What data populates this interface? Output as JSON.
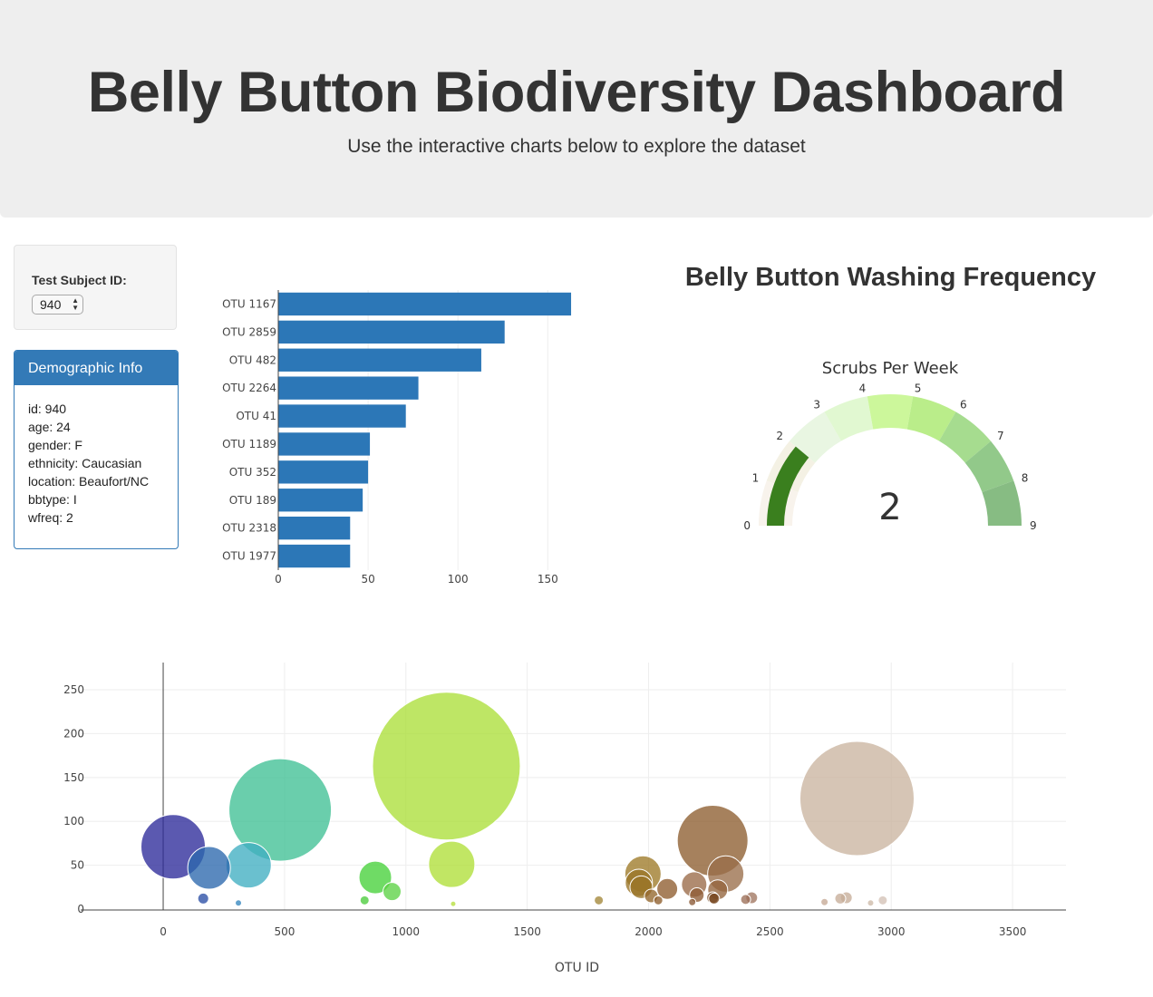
{
  "header": {
    "title": "Belly Button Biodiversity Dashboard",
    "subtitle": "Use the interactive charts below to explore the dataset"
  },
  "selector": {
    "label": "Test Subject ID:",
    "selected_value": "940"
  },
  "demographic": {
    "title": "Demographic Info",
    "lines": [
      "id: 940",
      "age: 24",
      "gender: F",
      "ethnicity: Caucasian",
      "location: Beaufort/NC",
      "bbtype: I",
      "wfreq: 2"
    ]
  },
  "colors": {
    "bar": "#2c77b7",
    "header_bg": "#eeeeee",
    "panel_accent": "#337ab7",
    "gauge_needle": "#3a7f1e"
  },
  "chart_data": [
    {
      "type": "bar",
      "orientation": "horizontal",
      "categories": [
        "OTU 1167",
        "OTU 2859",
        "OTU 482",
        "OTU 2264",
        "OTU 41",
        "OTU 1189",
        "OTU 352",
        "OTU 189",
        "OTU 2318",
        "OTU 1977"
      ],
      "values": [
        163,
        126,
        113,
        78,
        71,
        51,
        50,
        47,
        40,
        40
      ],
      "xlim": [
        0,
        165
      ],
      "xticks": [
        0,
        50,
        100,
        150
      ]
    },
    {
      "type": "gauge",
      "title": "Belly Button Washing Frequency",
      "subtitle": "Scrubs Per Week",
      "value": 2,
      "range": [
        0,
        9
      ],
      "ticks": [
        0,
        1,
        2,
        3,
        4,
        5,
        6,
        7,
        8,
        9
      ],
      "step_colors": [
        "#f8f3ec",
        "#f4f1e4",
        "#e9f6e2",
        "#e1f8d1",
        "#ccf79b",
        "#baed8a",
        "#a6dc8f",
        "#92c98a",
        "#87bc83"
      ]
    },
    {
      "type": "scatter",
      "subtype": "bubble",
      "xlabel": "OTU ID",
      "xlim": [
        -340,
        3720
      ],
      "ylim": [
        -1,
        281
      ],
      "xticks": [
        0,
        500,
        1000,
        1500,
        2000,
        2500,
        3000,
        3500
      ],
      "yticks": [
        0,
        50,
        100,
        150,
        200,
        250
      ],
      "points": [
        {
          "x": 41,
          "y": 71,
          "c": "#2d2a9a"
        },
        {
          "x": 189,
          "y": 47,
          "c": "#2c68ad"
        },
        {
          "x": 352,
          "y": 50,
          "c": "#40aec2"
        },
        {
          "x": 482,
          "y": 113,
          "c": "#40c095"
        },
        {
          "x": 1167,
          "y": 163,
          "c": "#acdf3a"
        },
        {
          "x": 1189,
          "y": 51,
          "c": "#b0df38"
        },
        {
          "x": 874,
          "y": 36,
          "c": "#46d13a"
        },
        {
          "x": 943,
          "y": 20,
          "c": "#5cd245"
        },
        {
          "x": 830,
          "y": 10,
          "c": "#4ccc3c"
        },
        {
          "x": 165,
          "y": 12,
          "c": "#2a4ea5"
        },
        {
          "x": 310,
          "y": 7,
          "c": "#3487bf"
        },
        {
          "x": 1195,
          "y": 6,
          "c": "#b6df3e"
        },
        {
          "x": 1795,
          "y": 10,
          "c": "#a38638"
        },
        {
          "x": 1977,
          "y": 40,
          "c": "#9e7a28"
        },
        {
          "x": 1960,
          "y": 30,
          "c": "#9a7426"
        },
        {
          "x": 1970,
          "y": 25,
          "c": "#9a7428"
        },
        {
          "x": 2011,
          "y": 15,
          "c": "#93672c"
        },
        {
          "x": 2077,
          "y": 23,
          "c": "#8e5c2e"
        },
        {
          "x": 2040,
          "y": 10,
          "c": "#8e5e2c"
        },
        {
          "x": 2264,
          "y": 78,
          "c": "#8d5e30"
        },
        {
          "x": 2318,
          "y": 40,
          "c": "#9a6e4a"
        },
        {
          "x": 2188,
          "y": 28,
          "c": "#9a6a48"
        },
        {
          "x": 2285,
          "y": 22,
          "c": "#94643c"
        },
        {
          "x": 2199,
          "y": 16,
          "c": "#8e5c36"
        },
        {
          "x": 2264,
          "y": 13,
          "c": "#7a4a24"
        },
        {
          "x": 2270,
          "y": 12,
          "c": "#7a4a24"
        },
        {
          "x": 2180,
          "y": 8,
          "c": "#8a5a36"
        },
        {
          "x": 2400,
          "y": 11,
          "c": "#9c7058"
        },
        {
          "x": 2425,
          "y": 13,
          "c": "#a07660"
        },
        {
          "x": 2859,
          "y": 126,
          "c": "#cbb5a0"
        },
        {
          "x": 2790,
          "y": 12,
          "c": "#c7ad99"
        },
        {
          "x": 2815,
          "y": 13,
          "c": "#c7ad99"
        },
        {
          "x": 2725,
          "y": 8,
          "c": "#c5a996"
        },
        {
          "x": 2965,
          "y": 10,
          "c": "#d3c2b6"
        },
        {
          "x": 2915,
          "y": 7,
          "c": "#cdbaa8"
        }
      ]
    }
  ]
}
